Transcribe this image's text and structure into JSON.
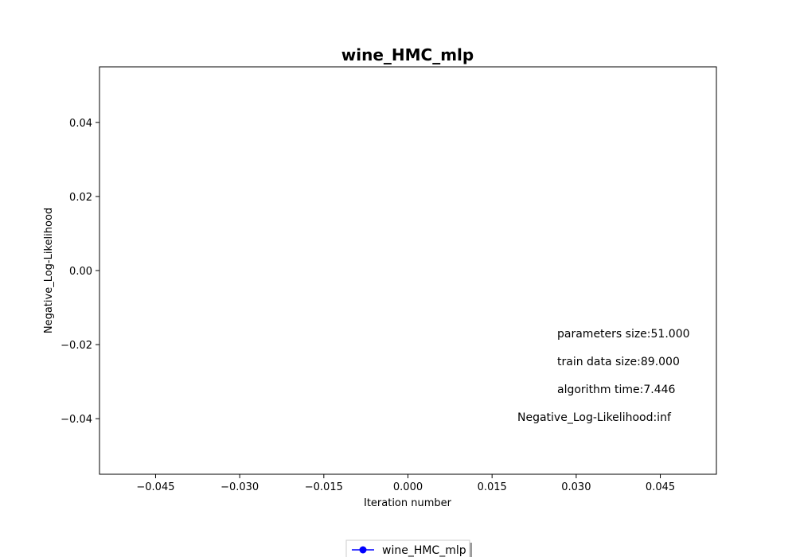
{
  "chart_data": {
    "type": "line",
    "title": "wine_HMC_mlp",
    "xlabel": "Iteration number",
    "ylabel": "Negative_Log-Likelihood",
    "xlim": [
      -0.055,
      0.055
    ],
    "ylim": [
      -0.055,
      0.055
    ],
    "xticks": [
      -0.045,
      -0.03,
      -0.015,
      0.0,
      0.015,
      0.03,
      0.045
    ],
    "xtick_labels": [
      "−0.045",
      "−0.030",
      "−0.015",
      "0.000",
      "0.015",
      "0.030",
      "0.045"
    ],
    "yticks": [
      0.04,
      0.02,
      0.0,
      -0.02,
      -0.04
    ],
    "ytick_labels": [
      "0.04",
      "0.02",
      "0.00",
      "−0.02",
      "−0.04"
    ],
    "grid": false,
    "series": [
      {
        "name": "wine_HMC_mlp",
        "color": "#0000ff",
        "marker": "circle",
        "x": [],
        "y": []
      }
    ],
    "annotations": [
      "parameters size:51.000",
      "train data size:89.000",
      "algorithm time:7.446",
      "Negative_Log-Likelihood:inf"
    ],
    "legend": {
      "placement": "bottom-center",
      "label": "wine_HMC_mlp"
    }
  }
}
